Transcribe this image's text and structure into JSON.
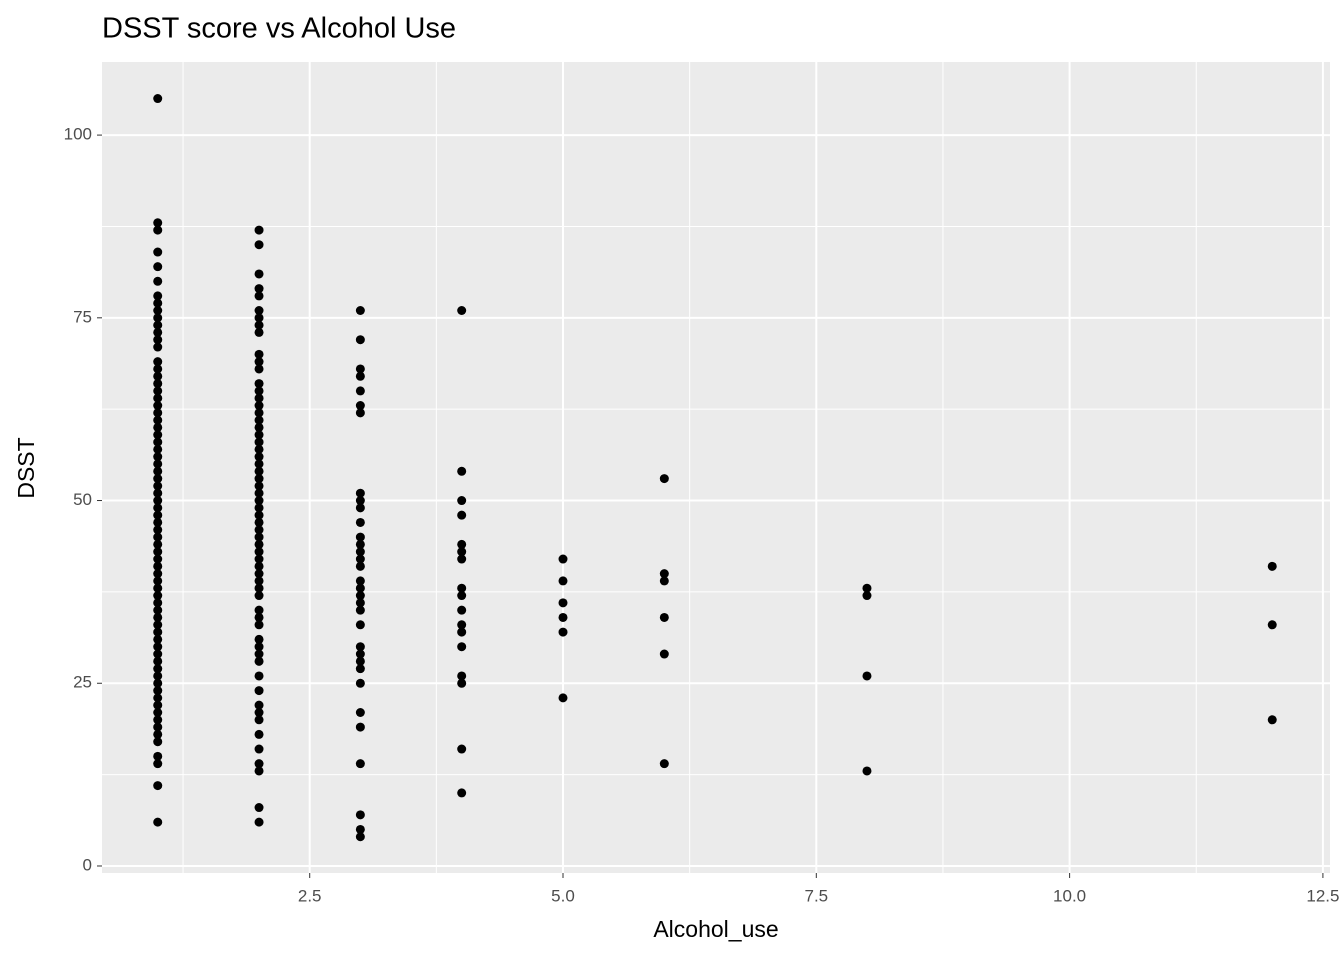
{
  "chart_data": {
    "type": "scatter",
    "title": "DSST score vs Alcohol Use",
    "x_label": "Alcohol_use",
    "y_label": "DSST",
    "color": "#000000",
    "grid": true,
    "xlim": [
      0.45,
      12.57
    ],
    "ylim": [
      -0.96,
      110
    ],
    "xticks": [
      {
        "value": 2.5,
        "label": "2.5"
      },
      {
        "value": 5,
        "label": "5.0"
      },
      {
        "value": 7.5,
        "label": "7.5"
      },
      {
        "value": 10,
        "label": "10.0"
      },
      {
        "value": 12.5,
        "label": "12.5"
      }
    ],
    "yticks": [
      0,
      25,
      50,
      75,
      100
    ],
    "x": [
      1,
      1,
      1,
      1,
      1,
      1,
      1,
      1,
      1,
      1,
      1,
      1,
      1,
      1,
      1,
      1,
      1,
      1,
      1,
      1,
      1,
      1,
      1,
      1,
      1,
      1,
      1,
      1,
      1,
      1,
      1,
      1,
      1,
      1,
      1,
      1,
      1,
      1,
      1,
      1,
      1,
      1,
      1,
      1,
      1,
      1,
      1,
      1,
      1,
      1,
      1,
      1,
      1,
      1,
      1,
      1,
      1,
      1,
      1,
      1,
      1,
      1,
      1,
      1,
      1,
      1,
      1,
      1,
      1,
      1,
      1,
      2,
      2,
      2,
      2,
      2,
      2,
      2,
      2,
      2,
      2,
      2,
      2,
      2,
      2,
      2,
      2,
      2,
      2,
      2,
      2,
      2,
      2,
      2,
      2,
      2,
      2,
      2,
      2,
      2,
      2,
      2,
      2,
      2,
      2,
      2,
      2,
      2,
      2,
      2,
      2,
      2,
      2,
      2,
      2,
      2,
      2,
      2,
      2,
      2,
      2,
      2,
      2,
      2,
      2,
      2,
      2,
      2,
      2,
      2,
      2,
      3,
      3,
      3,
      3,
      3,
      3,
      3,
      3,
      3,
      3,
      3,
      3,
      3,
      3,
      3,
      3,
      3,
      3,
      3,
      3,
      3,
      3,
      3,
      3,
      3,
      3,
      3,
      3,
      3,
      3,
      3,
      3,
      3,
      4,
      4,
      4,
      4,
      4,
      4,
      4,
      4,
      4,
      4,
      4,
      4,
      4,
      4,
      4,
      4,
      4,
      5,
      5,
      5,
      5,
      5,
      5,
      6,
      6,
      6,
      6,
      6,
      6,
      8,
      8,
      8,
      8,
      12,
      12,
      12
    ],
    "values": [
      105,
      88,
      87,
      84,
      82,
      80,
      78,
      77,
      76,
      75,
      74,
      73,
      72,
      71,
      69,
      68,
      67,
      66,
      65,
      64,
      63,
      62,
      61,
      60,
      59,
      58,
      57,
      56,
      55,
      54,
      53,
      52,
      51,
      50,
      49,
      48,
      47,
      46,
      45,
      44,
      43,
      42,
      41,
      40,
      39,
      38,
      37,
      36,
      35,
      34,
      33,
      32,
      31,
      30,
      29,
      28,
      27,
      26,
      25,
      24,
      23,
      22,
      21,
      20,
      19,
      18,
      17,
      15,
      14,
      11,
      6,
      87,
      85,
      81,
      79,
      78,
      76,
      75,
      74,
      73,
      70,
      69,
      68,
      66,
      65,
      64,
      63,
      62,
      61,
      60,
      59,
      58,
      57,
      56,
      55,
      54,
      53,
      52,
      51,
      50,
      49,
      48,
      47,
      46,
      45,
      44,
      43,
      42,
      41,
      40,
      39,
      38,
      37,
      35,
      34,
      33,
      31,
      30,
      29,
      28,
      26,
      24,
      22,
      21,
      20,
      18,
      16,
      14,
      13,
      8,
      6,
      76,
      72,
      68,
      67,
      65,
      63,
      62,
      51,
      50,
      49,
      47,
      45,
      44,
      43,
      42,
      41,
      39,
      38,
      37,
      36,
      35,
      33,
      30,
      29,
      28,
      27,
      25,
      21,
      19,
      14,
      7,
      5,
      4,
      76,
      54,
      50,
      48,
      44,
      43,
      42,
      38,
      37,
      35,
      33,
      32,
      30,
      26,
      25,
      16,
      10,
      42,
      39,
      36,
      34,
      32,
      23,
      53,
      40,
      39,
      34,
      29,
      14,
      38,
      37,
      26,
      13,
      41,
      33,
      20
    ]
  }
}
